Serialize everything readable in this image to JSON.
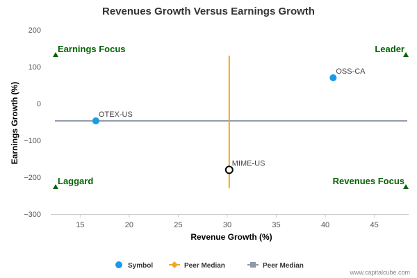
{
  "chart_data": {
    "type": "scatter",
    "title": "Revenues Growth Versus Earnings Growth",
    "xlabel": "Revenue Growth (%)",
    "ylabel": "Earnings Growth (%)",
    "xlim": [
      12,
      48.5
    ],
    "ylim": [
      -300,
      200
    ],
    "xticks": [
      15,
      20,
      25,
      30,
      35,
      40,
      45
    ],
    "yticks": [
      200,
      100,
      0,
      -100,
      -200,
      -300
    ],
    "points": [
      {
        "label": "OSS-CA",
        "x": 40.8,
        "y": 70,
        "style": "filled"
      },
      {
        "label": "OTEX-US",
        "x": 16.6,
        "y": -47,
        "style": "filled"
      },
      {
        "label": "MIME-US",
        "x": 30.2,
        "y": -180,
        "style": "hollow"
      }
    ],
    "peer_median": {
      "x": 30.2,
      "y": -47
    },
    "quadrants": {
      "top_left": "Earnings Focus",
      "top_right": "Leader",
      "bottom_left": "Laggard",
      "bottom_right": "Revenues Focus"
    },
    "legend": [
      {
        "name": "Symbol",
        "marker": "circle",
        "color": "#1a9be8"
      },
      {
        "name": "Peer Median",
        "marker": "diamond-line",
        "color": "#f5a623"
      },
      {
        "name": "Peer Median",
        "marker": "square-line",
        "color": "#8f98a8"
      }
    ],
    "colors": {
      "point": "#1a9be8",
      "vertical_median": "#f5a623",
      "horizontal_median": "#8f98a8",
      "quadrant_text": "#006400"
    },
    "credit": "www.capitalcube.com"
  }
}
